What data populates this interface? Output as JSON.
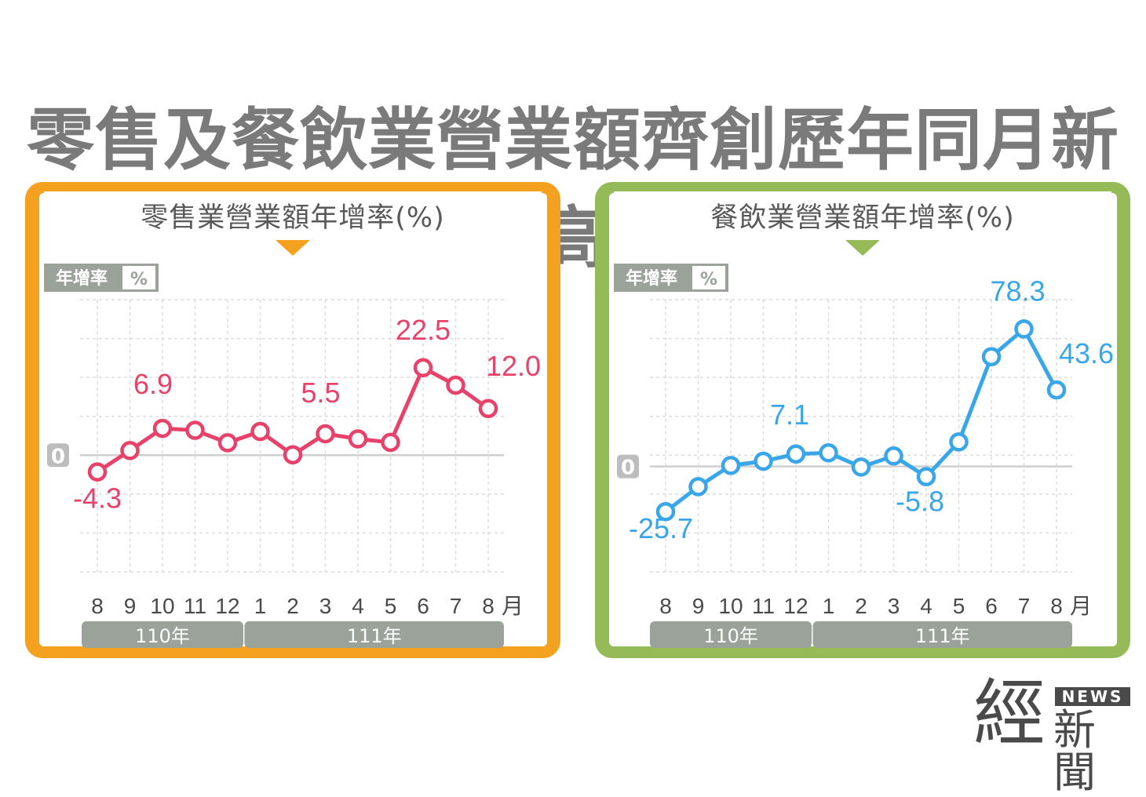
{
  "title": "零售及餐飲業營業額齊創歷年同月新高",
  "logo": {
    "big": "經",
    "news": "NEWS",
    "small": "新聞"
  },
  "chart_data": [
    {
      "type": "line",
      "title": "零售業營業額年增率(%)",
      "unit_label": "年增率",
      "unit_badge": "%",
      "x_suffix": "月",
      "color": "#e8426a",
      "border_color": "#f5a120",
      "categories": [
        "8",
        "9",
        "10",
        "11",
        "12",
        "1",
        "2",
        "3",
        "4",
        "5",
        "6",
        "7",
        "8"
      ],
      "values": [
        -4.3,
        1.2,
        6.9,
        6.4,
        3.2,
        6.1,
        0.1,
        5.5,
        4.2,
        3.3,
        22.5,
        18.0,
        12.0
      ],
      "data_labels": [
        {
          "index": 0,
          "text": "-4.3"
        },
        {
          "index": 2,
          "text": "6.9"
        },
        {
          "index": 7,
          "text": "5.5"
        },
        {
          "index": 10,
          "text": "22.5"
        },
        {
          "index": 12,
          "text": "12.0"
        }
      ],
      "year_groups": [
        {
          "label": "110年",
          "start": 0,
          "end": 4
        },
        {
          "label": "111年",
          "start": 5,
          "end": 12
        }
      ],
      "ylim": [
        -30,
        40
      ],
      "grid": true
    },
    {
      "type": "line",
      "title": "餐飲業營業額年增率(%)",
      "unit_label": "年增率",
      "unit_badge": "%",
      "x_suffix": "月",
      "color": "#3aa6ea",
      "border_color": "#94bb57",
      "categories": [
        "8",
        "9",
        "10",
        "11",
        "12",
        "1",
        "2",
        "3",
        "4",
        "5",
        "6",
        "7",
        "8"
      ],
      "values": [
        -25.7,
        -11.5,
        0.6,
        3.0,
        7.1,
        7.8,
        -0.3,
        6.0,
        -5.8,
        14.0,
        62.5,
        78.3,
        43.6
      ],
      "data_labels": [
        {
          "index": 0,
          "text": "-25.7"
        },
        {
          "index": 4,
          "text": "7.1"
        },
        {
          "index": 8,
          "text": "-5.8"
        },
        {
          "index": 11,
          "text": "78.3"
        },
        {
          "index": 12,
          "text": "43.6"
        }
      ],
      "year_groups": [
        {
          "label": "110年",
          "start": 0,
          "end": 4
        },
        {
          "label": "111年",
          "start": 5,
          "end": 12
        }
      ],
      "ylim": [
        -60,
        95
      ],
      "grid": true
    }
  ]
}
